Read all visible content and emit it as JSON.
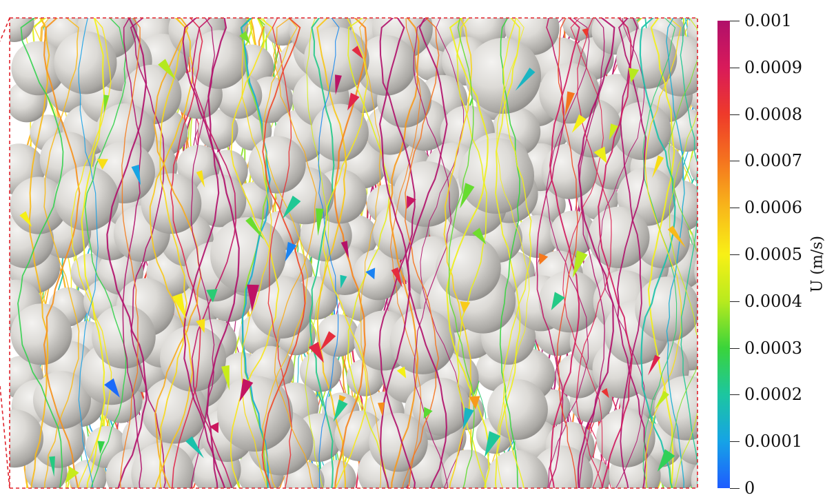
{
  "colorbar": {
    "title": "U (m/s)",
    "min": 0,
    "max": 0.001,
    "ticks": [
      "0.001",
      "0.0009",
      "0.0008",
      "0.0007",
      "0.0006",
      "0.0005",
      "0.0004",
      "0.0003",
      "0.0002",
      "0.0001",
      "0"
    ],
    "colormap": [
      "#1e5cff",
      "#16a3e6",
      "#1cc6a0",
      "#3ad43a",
      "#b8ea1e",
      "#f8f016",
      "#f8b71a",
      "#f5741e",
      "#ee3a2a",
      "#d81a5a",
      "#b0106a"
    ]
  },
  "scene": {
    "description_colors": {
      "background": "#ffffff",
      "sphere": "#d8d6d2",
      "frame": "#e0202a"
    }
  }
}
